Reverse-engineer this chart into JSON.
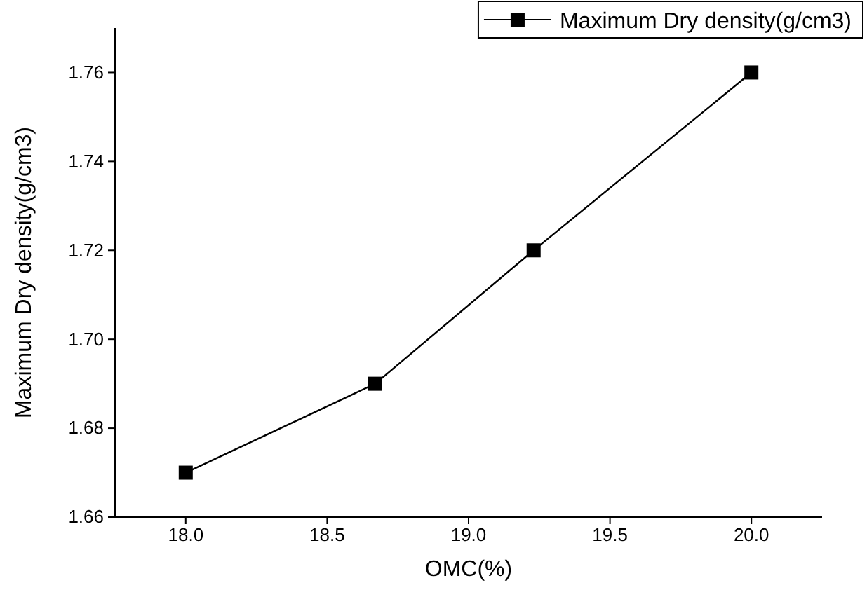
{
  "chart_data": {
    "type": "line",
    "xlabel": "OMC(%)",
    "ylabel": "Maximum Dry density(g/cm3)",
    "x": [
      18.0,
      18.67,
      19.23,
      20.0
    ],
    "series": [
      {
        "name": "Maximum Dry density(g/cm3)",
        "color": "#000000",
        "values": [
          1.67,
          1.69,
          1.72,
          1.76
        ]
      }
    ],
    "xlim": [
      17.75,
      20.25
    ],
    "xticks": [
      {
        "value": 18,
        "label": "18.0"
      },
      18.5,
      {
        "value": 19,
        "label": "19.0"
      },
      19.5,
      {
        "value": 20,
        "label": "20.0"
      }
    ],
    "ylim": [
      1.66,
      1.77
    ],
    "yticks": [
      {
        "value": 1.66,
        "label": "1.66"
      },
      1.68,
      {
        "value": 1.7,
        "label": "1.70"
      },
      1.72,
      1.74,
      1.76
    ],
    "marker": "square",
    "line_style": "solid",
    "legend": "top right",
    "grid": false
  }
}
